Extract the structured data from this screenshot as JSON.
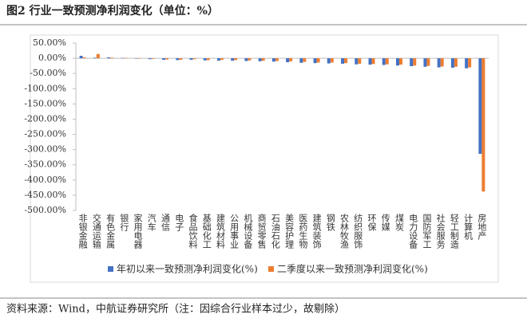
{
  "chart_data": {
    "type": "bar",
    "title": "图2 行业一致预测净利润变化（单位：%）",
    "categories": [
      "非银金融",
      "交通运输",
      "有色金属",
      "银行",
      "家用电器",
      "汽车",
      "通信",
      "电子",
      "食品饮料",
      "基础化工",
      "建筑材料",
      "公用事业",
      "机械设备",
      "商贸零售",
      "石油石化",
      "美容护理",
      "医药生物",
      "建筑装饰",
      "钢铁",
      "农林牧渔",
      "纺织服饰",
      "环保",
      "传媒",
      "煤炭",
      "电力设备",
      "国防军工",
      "社会服务",
      "轻工制造",
      "计算机",
      "房地产"
    ],
    "series": [
      {
        "name": "年初以来一致预测净利润变化(%)",
        "color": "#4472c4",
        "values": [
          8,
          2,
          3,
          1,
          -1,
          -3,
          -5,
          -6,
          -5,
          -7,
          -8,
          -8,
          -9,
          -10,
          -11,
          -13,
          -15,
          -16,
          -17,
          -18,
          -20,
          -21,
          -22,
          -24,
          -26,
          -28,
          -30,
          -31,
          -33,
          -314
        ]
      },
      {
        "name": "二季度以来一致预测净利润变化(%)",
        "color": "#ed7d31",
        "values": [
          3,
          14,
          2,
          1,
          -1,
          -2,
          -4,
          -5,
          -3,
          -6,
          -5,
          -6,
          -7,
          -8,
          -9,
          -10,
          -12,
          -14,
          -14,
          -16,
          -18,
          -19,
          -20,
          -21,
          -24,
          -25,
          -27,
          -28,
          -30,
          -438
        ]
      }
    ],
    "ylim": [
      -500,
      50
    ],
    "yticks": [
      {
        "value": 50,
        "label": "50.00%"
      },
      {
        "value": 0,
        "label": "0.00%"
      },
      {
        "value": -50,
        "label": "-50.00%"
      },
      {
        "value": -100,
        "label": "-100.00%"
      },
      {
        "value": -150,
        "label": "-150.00%"
      },
      {
        "value": -200,
        "label": "-200.00%"
      },
      {
        "value": -250,
        "label": "-250.00%"
      },
      {
        "value": -300,
        "label": "-300.00%"
      },
      {
        "value": -350,
        "label": "-350.00%"
      },
      {
        "value": -400,
        "label": "-400.00%"
      },
      {
        "value": -450,
        "label": "-450.00%"
      },
      {
        "value": -500,
        "label": "-500.00%"
      }
    ],
    "legend": "bottom"
  },
  "source": "资料来源：Wind，中航证券研究所（注：因综合行业样本过少，故剔除）"
}
